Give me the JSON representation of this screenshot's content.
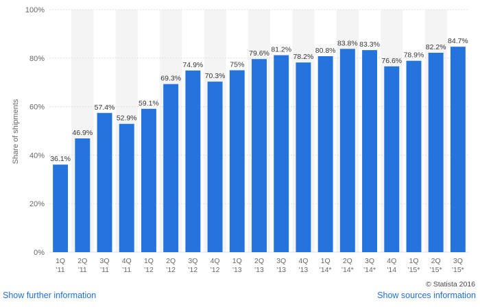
{
  "chart_data": {
    "type": "bar",
    "categories": [
      "1Q '11",
      "2Q '11",
      "3Q '11",
      "4Q '11",
      "1Q '12",
      "2Q '12",
      "3Q '12",
      "4Q '12",
      "1Q '13",
      "2Q '13",
      "3Q '13",
      "4Q '13",
      "1Q '14*",
      "2Q '14*",
      "3Q '14*",
      "4Q '14",
      "1Q '15*",
      "2Q '15*",
      "3Q '15*"
    ],
    "category_lines": [
      [
        "1Q",
        "'11"
      ],
      [
        "2Q",
        "'11"
      ],
      [
        "3Q",
        "'11"
      ],
      [
        "4Q",
        "'11"
      ],
      [
        "1Q",
        "'12"
      ],
      [
        "2Q",
        "'12"
      ],
      [
        "3Q",
        "'12"
      ],
      [
        "4Q",
        "'12"
      ],
      [
        "1Q",
        "'13"
      ],
      [
        "2Q",
        "'13"
      ],
      [
        "3Q",
        "'13"
      ],
      [
        "4Q",
        "'13"
      ],
      [
        "1Q",
        "'14*"
      ],
      [
        "2Q",
        "'14*"
      ],
      [
        "3Q",
        "'14*"
      ],
      [
        "4Q",
        "'14"
      ],
      [
        "1Q",
        "'15*"
      ],
      [
        "2Q",
        "'15*"
      ],
      [
        "3Q",
        "'15*"
      ]
    ],
    "values": [
      36.1,
      46.9,
      57.4,
      52.9,
      59.1,
      69.3,
      74.9,
      70.3,
      75,
      79.6,
      81.2,
      78.2,
      80.8,
      83.8,
      83.3,
      76.6,
      78.9,
      82.2,
      84.7
    ],
    "data_labels": [
      "36.1%",
      "46.9%",
      "57.4%",
      "52.9%",
      "59.1%",
      "69.3%",
      "74.9%",
      "70.3%",
      "75%",
      "79.6%",
      "81.2%",
      "78.2%",
      "80.8%",
      "83.8%",
      "83.3%",
      "76.6%",
      "78.9%",
      "82.2%",
      "84.7%"
    ],
    "ylabel": "Share of shipments",
    "ylim": [
      0,
      100
    ],
    "yticks": [
      0,
      20,
      40,
      60,
      80,
      100
    ],
    "ytick_labels": [
      "0%",
      "20%",
      "40%",
      "60%",
      "80%",
      "100%"
    ],
    "grid": true,
    "alternating_column_shading": true,
    "colors": {
      "bar": "#2573dc",
      "shade": "#f4f4f4",
      "grid": "#e0e0e0"
    }
  },
  "footer": {
    "left_link": "Show further information",
    "right_link": "Show sources information",
    "credit": "© Statista 2016"
  }
}
